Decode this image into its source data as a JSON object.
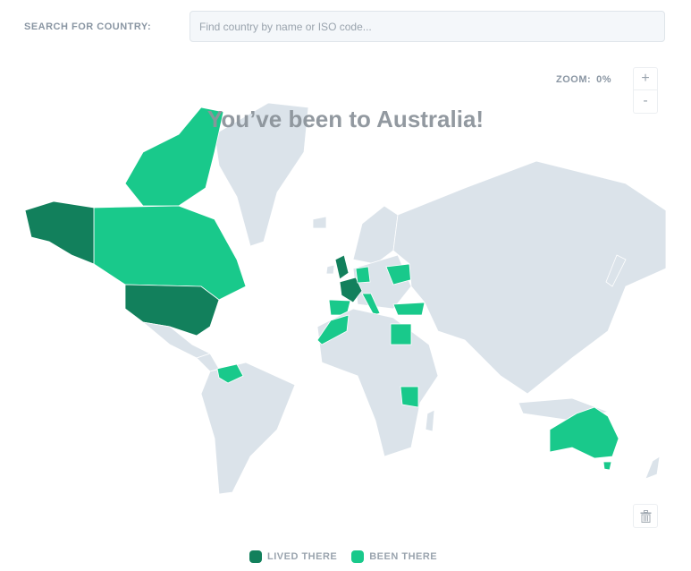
{
  "search": {
    "label": "SEARCH FOR COUNTRY:",
    "placeholder": "Find country by name or ISO code..."
  },
  "zoom": {
    "label": "ZOOM:",
    "value": "0%",
    "in_label": "+",
    "out_label": "-"
  },
  "map": {
    "title": "You’ve been to Australia!",
    "colors": {
      "lived": "#12805c",
      "been": "#19c98b",
      "default": "#dbe3ea"
    },
    "lived": [
      "United States",
      "United Kingdom",
      "France"
    ],
    "been": [
      "Canada",
      "Spain",
      "Italy",
      "Germany",
      "Ukraine",
      "Turkey",
      "Morocco",
      "Egypt",
      "Tanzania",
      "Venezuela",
      "Australia"
    ]
  },
  "legend": [
    {
      "label": "LIVED THERE",
      "color": "#12805c"
    },
    {
      "label": "BEEN THERE",
      "color": "#19c98b"
    }
  ],
  "trash": {
    "icon": "trash-icon"
  }
}
